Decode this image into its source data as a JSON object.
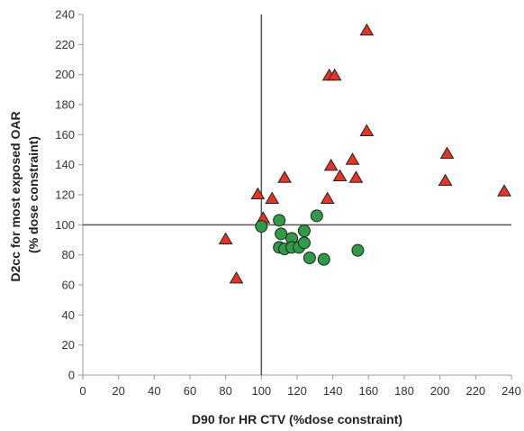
{
  "chart_data": {
    "type": "scatter",
    "xlabel": "D90 for HR CTV (%dose constraint)",
    "ylabel_lines": [
      "D2cc for most exposed OAR",
      "(% dose constraint)"
    ],
    "xlim": [
      0,
      240
    ],
    "ylim": [
      0,
      240
    ],
    "x_ticks": [
      0,
      20,
      40,
      60,
      80,
      100,
      120,
      140,
      160,
      180,
      200,
      220,
      240
    ],
    "y_ticks": [
      0,
      20,
      40,
      60,
      80,
      100,
      120,
      140,
      160,
      180,
      200,
      220,
      240
    ],
    "reference_lines": {
      "x": 100,
      "y": 100
    },
    "grid": false,
    "series": [
      {
        "marker": "triangle",
        "color": "#e63323",
        "points": [
          [
            80,
            90
          ],
          [
            86,
            64
          ],
          [
            98,
            120
          ],
          [
            101,
            104
          ],
          [
            106,
            117
          ],
          [
            113,
            131
          ],
          [
            137,
            117
          ],
          [
            138,
            199
          ],
          [
            141,
            199
          ],
          [
            139,
            139
          ],
          [
            144,
            132
          ],
          [
            151,
            143
          ],
          [
            153,
            131
          ],
          [
            159,
            229
          ],
          [
            159,
            162
          ],
          [
            203,
            129
          ],
          [
            204,
            147
          ],
          [
            236,
            122
          ]
        ]
      },
      {
        "marker": "circle",
        "color": "#2e9b47",
        "points": [
          [
            100,
            99
          ],
          [
            110,
            103
          ],
          [
            111,
            94
          ],
          [
            110,
            85
          ],
          [
            113,
            84
          ],
          [
            117,
            91
          ],
          [
            117,
            85
          ],
          [
            121,
            85
          ],
          [
            124,
            96
          ],
          [
            124,
            88
          ],
          [
            127,
            78
          ],
          [
            131,
            106
          ],
          [
            135,
            77
          ],
          [
            154,
            83
          ]
        ]
      }
    ],
    "colors": {
      "axis": "#999999",
      "refline": "#555555",
      "marker_stroke": "#222222"
    }
  }
}
